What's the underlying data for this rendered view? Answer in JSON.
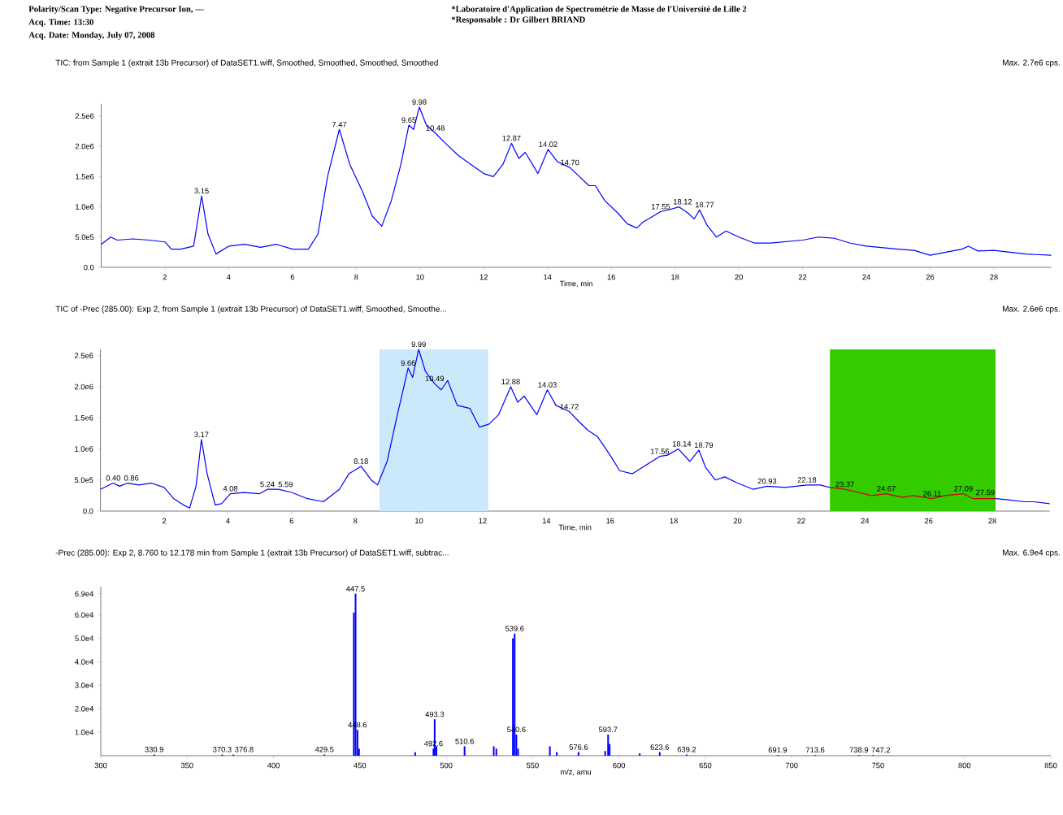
{
  "chart_data": [
    {
      "type": "line",
      "title": "TIC: from Sample 1 (extrait 13b Precursor) of DataSET1.wiff, Smoothed, Smoothed, Smoothed, Smoothed",
      "subtitle": "Max. 2.7e6 cps.",
      "xlabel": "Time, min",
      "x": [
        0.0,
        0.3,
        0.5,
        1.0,
        1.5,
        2.0,
        2.2,
        2.5,
        2.9,
        3.15,
        3.35,
        3.6,
        4.0,
        4.5,
        5.0,
        5.5,
        6.0,
        6.5,
        6.8,
        7.1,
        7.47,
        7.8,
        8.2,
        8.5,
        8.8,
        9.1,
        9.4,
        9.65,
        9.8,
        9.98,
        10.2,
        10.48,
        10.8,
        11.2,
        11.6,
        12.0,
        12.3,
        12.6,
        12.87,
        13.1,
        13.3,
        13.7,
        14.02,
        14.3,
        14.7,
        15.0,
        15.3,
        15.5,
        15.8,
        16.2,
        16.5,
        16.8,
        17.0,
        17.55,
        17.8,
        18.12,
        18.4,
        18.6,
        18.77,
        19.0,
        19.3,
        19.6,
        20.0,
        20.5,
        21.0,
        22.0,
        22.5,
        23.0,
        23.5,
        24.0,
        25.0,
        25.5,
        26.0,
        26.5,
        27.0,
        27.2,
        27.5,
        28.0,
        28.5,
        29.0,
        29.8
      ],
      "values": [
        380000,
        500000,
        450000,
        470000,
        450000,
        420000,
        300000,
        300000,
        350000,
        1180000,
        550000,
        220000,
        350000,
        380000,
        330000,
        380000,
        300000,
        300000,
        550000,
        1500000,
        2280000,
        1700000,
        1250000,
        850000,
        680000,
        1100000,
        1700000,
        2350000,
        2280000,
        2650000,
        2350000,
        2220000,
        2050000,
        1850000,
        1700000,
        1550000,
        1500000,
        1700000,
        2050000,
        1800000,
        1900000,
        1550000,
        1950000,
        1750000,
        1650000,
        1500000,
        1350000,
        1350000,
        1100000,
        900000,
        720000,
        650000,
        750000,
        920000,
        950000,
        1000000,
        900000,
        800000,
        950000,
        700000,
        500000,
        600000,
        500000,
        400000,
        400000,
        450000,
        500000,
        480000,
        400000,
        350000,
        300000,
        280000,
        200000,
        250000,
        300000,
        350000,
        270000,
        280000,
        250000,
        220000,
        200000
      ],
      "color": "#0000ff",
      "xlim": [
        0,
        29.8
      ],
      "ylim": [
        0,
        2700000
      ],
      "xticks": [
        2,
        4,
        6,
        8,
        10,
        12,
        14,
        16,
        18,
        20,
        22,
        24,
        26,
        28
      ],
      "yticks": [
        {
          "value": 0,
          "label": "0.0"
        },
        {
          "value": 500000,
          "label": "5.0e5"
        },
        {
          "value": 1000000,
          "label": "1.0e6"
        },
        {
          "value": 1500000,
          "label": "1.5e6"
        },
        {
          "value": 2000000,
          "label": "2.0e6"
        },
        {
          "value": 2500000,
          "label": "2.5e6"
        }
      ],
      "annotations": [
        "Polarity/Scan Type: Negative Precursor Ion, ---",
        "Acq. Time: 13:30",
        "Acq. Date: Monday, July 07, 2008",
        "*Laboratoire d'Application de Spectrométrie de Masse de l'Université de Lille 2",
        "*Responsable : Dr Gilbert BRIAND",
        {
          "text": "3.15",
          "x": 3.15,
          "y": 1180000
        },
        {
          "text": "7.47",
          "x": 7.47,
          "y": 2280000
        },
        {
          "text": "9.65",
          "x": 9.65,
          "y": 2350000
        },
        {
          "text": "9.98",
          "x": 9.98,
          "y": 2650000
        },
        {
          "text": "10.48",
          "x": 10.48,
          "y": 2220000
        },
        {
          "text": "12.87",
          "x": 12.87,
          "y": 2050000
        },
        {
          "text": "14.02",
          "x": 14.02,
          "y": 1950000
        },
        {
          "text": "14.70",
          "x": 14.7,
          "y": 1650000
        },
        {
          "text": "17.55",
          "x": 17.55,
          "y": 920000
        },
        {
          "text": "18.12",
          "x": 18.12,
          "y": 1000000
        },
        {
          "text": "18.77",
          "x": 18.77,
          "y": 950000
        }
      ]
    },
    {
      "type": "line",
      "title": "TIC of -Prec (285.00): Exp 2, from Sample 1 (extrait 13b Precursor) of DataSET1.wiff, Smoothed, Smoothe...",
      "subtitle": "Max. 2.6e6 cps.",
      "xlabel": "Time, min",
      "series": [
        {
          "color": "#0000ff",
          "x": [
            0.0,
            0.4,
            0.6,
            0.86,
            1.2,
            1.6,
            2.0,
            2.3,
            2.6,
            2.8,
            3.0,
            3.17,
            3.35,
            3.6,
            3.8,
            4.08,
            4.5,
            5.0,
            5.24,
            5.59,
            6.0,
            6.5,
            7.0,
            7.5,
            7.8,
            8.18,
            8.5,
            8.7,
            9.0,
            9.3,
            9.66,
            9.8,
            9.99,
            10.2,
            10.49,
            10.7,
            10.9,
            11.2,
            11.6,
            11.9,
            12.2,
            12.5,
            12.88,
            13.1,
            13.3,
            13.7,
            14.03,
            14.3,
            14.72,
            15.0,
            15.3,
            15.6,
            16.0,
            16.3,
            16.7,
            17.0,
            17.56,
            17.8,
            18.14,
            18.5,
            18.79,
            19.0,
            19.3,
            19.6,
            20.0,
            20.5,
            20.93,
            21.5,
            22.18,
            22.6,
            22.9,
            25.5,
            28.1,
            28.5,
            29.0,
            29.3,
            29.8
          ],
          "values": [
            350000,
            450000,
            400000,
            450000,
            420000,
            450000,
            380000,
            200000,
            100000,
            50000,
            400000,
            1150000,
            600000,
            100000,
            120000,
            280000,
            300000,
            280000,
            350000,
            350000,
            300000,
            200000,
            150000,
            350000,
            600000,
            720000,
            500000,
            420000,
            800000,
            1500000,
            2300000,
            2150000,
            2600000,
            2250000,
            2050000,
            1950000,
            2100000,
            1700000,
            1650000,
            1350000,
            1400000,
            1550000,
            2000000,
            1750000,
            1850000,
            1550000,
            1950000,
            1700000,
            1600000,
            1450000,
            1300000,
            1200000,
            900000,
            650000,
            600000,
            700000,
            880000,
            900000,
            1000000,
            800000,
            980000,
            700000,
            500000,
            550000,
            450000,
            350000,
            400000,
            380000,
            420000,
            420000,
            380000,
            null,
            200000,
            180000,
            150000,
            150000,
            120000
          ]
        },
        {
          "color": "#cc0000",
          "x": [
            22.9,
            23.37,
            23.8,
            24.2,
            24.67,
            25.2,
            25.5,
            26.11,
            26.5,
            27.09,
            27.4,
            28.1
          ],
          "values": [
            380000,
            350000,
            300000,
            250000,
            280000,
            220000,
            250000,
            200000,
            250000,
            280000,
            200000,
            200000
          ]
        }
      ],
      "bands": [
        {
          "axis": "x",
          "from": 8.76,
          "to": 12.178,
          "color": "#cce8fb"
        },
        {
          "axis": "x",
          "from": 22.9,
          "to": 28.1,
          "color": "#33cc00"
        }
      ],
      "xlim": [
        0,
        29.8
      ],
      "ylim": [
        0,
        2600000
      ],
      "xticks": [
        2,
        4,
        6,
        8,
        10,
        12,
        14,
        16,
        18,
        20,
        22,
        24,
        26,
        28
      ],
      "yticks": [
        {
          "value": 0,
          "label": "0.0"
        },
        {
          "value": 500000,
          "label": "5.0e5"
        },
        {
          "value": 1000000,
          "label": "1.0e6"
        },
        {
          "value": 1500000,
          "label": "1.5e6"
        },
        {
          "value": 2000000,
          "label": "2.0e6"
        },
        {
          "value": 2500000,
          "label": "2.5e6"
        }
      ],
      "annotations": [
        {
          "text": "0.40",
          "x": 0.4,
          "y": 450000
        },
        {
          "text": "0.86",
          "x": 0.86,
          "y": 450000
        },
        {
          "text": "3.17",
          "x": 3.17,
          "y": 1150000
        },
        {
          "text": "4.08",
          "x": 4.08,
          "y": 280000
        },
        {
          "text": "5.24",
          "x": 5.24,
          "y": 350000
        },
        {
          "text": "5.59",
          "x": 5.59,
          "y": 350000
        },
        {
          "text": "8.18",
          "x": 8.18,
          "y": 720000
        },
        {
          "text": "9.66",
          "x": 9.66,
          "y": 2300000
        },
        {
          "text": "9.99",
          "x": 9.99,
          "y": 2600000
        },
        {
          "text": "10.49",
          "x": 10.49,
          "y": 2050000
        },
        {
          "text": "12.88",
          "x": 12.88,
          "y": 2000000
        },
        {
          "text": "14.03",
          "x": 14.03,
          "y": 1950000
        },
        {
          "text": "14.72",
          "x": 14.72,
          "y": 1600000
        },
        {
          "text": "17.56",
          "x": 17.56,
          "y": 880000
        },
        {
          "text": "18.14",
          "x": 18.14,
          "y": 1000000
        },
        {
          "text": "18.79",
          "x": 18.79,
          "y": 980000
        },
        {
          "text": "20.93",
          "x": 20.93,
          "y": 400000
        },
        {
          "text": "22.18",
          "x": 22.18,
          "y": 420000
        },
        {
          "text": "23.37",
          "x": 23.37,
          "y": 350000
        },
        {
          "text": "24.67",
          "x": 24.67,
          "y": 280000
        },
        {
          "text": "26.11",
          "x": 26.11,
          "y": 200000
        },
        {
          "text": "27.09",
          "x": 27.09,
          "y": 280000
        },
        {
          "text": "27.59",
          "x": 27.59,
          "y": 220000
        }
      ]
    },
    {
      "type": "bar",
      "title": "-Prec (285.00): Exp 2, 8.760 to 12.178 min from Sample 1 (extrait 13b Precursor) of DataSET1.wiff, subtrac...",
      "subtitle": "Max. 6.9e4 cps.",
      "xlabel": "m/z, amu",
      "x": [
        330.9,
        370.3,
        376.8,
        429.5,
        446.5,
        447.5,
        448.6,
        449.5,
        482,
        492.6,
        493.3,
        494.3,
        510.6,
        527.5,
        529,
        538.6,
        539.6,
        540.6,
        541.6,
        560,
        564,
        576.6,
        592,
        593.7,
        594.6,
        612,
        623.6,
        639.2,
        691.9,
        713.6,
        738.9,
        747.2
      ],
      "values": [
        500,
        500,
        500,
        500,
        61000,
        69000,
        11000,
        3000,
        1500,
        3000,
        15500,
        4000,
        4000,
        4000,
        3000,
        50000,
        52000,
        9000,
        3000,
        4000,
        1500,
        1500,
        2000,
        9000,
        5000,
        1000,
        1500,
        500,
        300,
        300,
        300,
        300
      ],
      "color": "#0000ff",
      "xlim": [
        300,
        850
      ],
      "ylim": [
        0,
        72000
      ],
      "xticks": [
        300,
        350,
        400,
        450,
        500,
        550,
        600,
        650,
        700,
        750,
        800,
        850
      ],
      "yticks": [
        {
          "value": 10000,
          "label": "1.0e4"
        },
        {
          "value": 20000,
          "label": "2.0e4"
        },
        {
          "value": 30000,
          "label": "3.0e4"
        },
        {
          "value": 40000,
          "label": "4.0e4"
        },
        {
          "value": 50000,
          "label": "5.0e4"
        },
        {
          "value": 60000,
          "label": "6.0e4"
        },
        {
          "value": 69000,
          "label": "6.9e4"
        }
      ],
      "annotations": [
        {
          "text": "330.9",
          "x": 330.9,
          "y": 500
        },
        {
          "text": "370.3",
          "x": 370.3,
          "y": 500
        },
        {
          "text": "376.8",
          "x": 376.8,
          "y": 500
        },
        {
          "text": "429.5",
          "x": 429.5,
          "y": 500
        },
        {
          "text": "447.5",
          "x": 447.5,
          "y": 69000
        },
        {
          "text": "448.6",
          "x": 448.6,
          "y": 11000
        },
        {
          "text": "492.6",
          "x": 492.6,
          "y": 3000
        },
        {
          "text": "493.3",
          "x": 493.3,
          "y": 15500
        },
        {
          "text": "510.6",
          "x": 510.6,
          "y": 4000
        },
        {
          "text": "539.6",
          "x": 539.6,
          "y": 52000
        },
        {
          "text": "540.6",
          "x": 540.6,
          "y": 9000
        },
        {
          "text": "576.6",
          "x": 576.6,
          "y": 1500
        },
        {
          "text": "593.7",
          "x": 593.7,
          "y": 9000
        },
        {
          "text": "623.6",
          "x": 623.6,
          "y": 1500
        },
        {
          "text": "639.2",
          "x": 639.2,
          "y": 500
        },
        {
          "text": "691.9",
          "x": 691.9,
          "y": 300
        },
        {
          "text": "713.6",
          "x": 713.6,
          "y": 300
        },
        {
          "text": "738.9",
          "x": 738.9,
          "y": 300
        },
        {
          "text": "747.2",
          "x": 747.2,
          "y": 300
        }
      ]
    }
  ]
}
